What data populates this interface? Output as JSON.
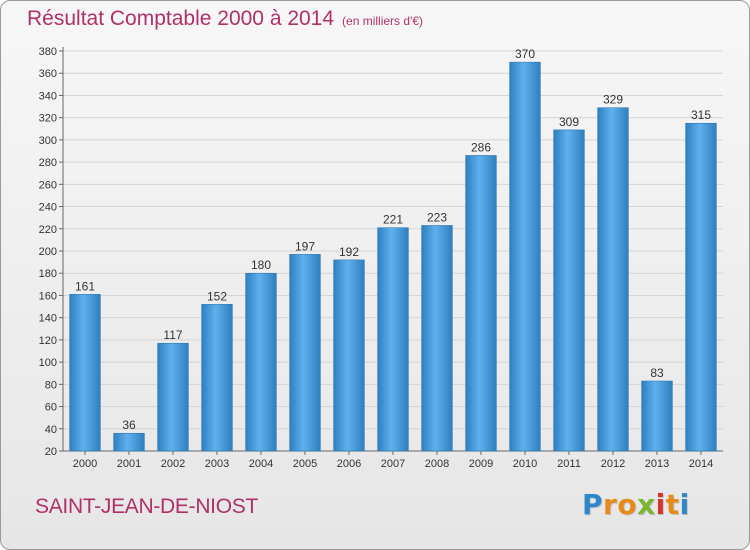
{
  "chart_data": {
    "type": "bar",
    "title": "Résultat Comptable 2000 à 2014",
    "subtitle": "(en milliers d'€)",
    "categories": [
      "2000",
      "2001",
      "2002",
      "2003",
      "2004",
      "2005",
      "2006",
      "2007",
      "2008",
      "2009",
      "2010",
      "2011",
      "2012",
      "2013",
      "2014"
    ],
    "values": [
      161,
      36,
      117,
      152,
      180,
      197,
      192,
      221,
      223,
      286,
      370,
      309,
      329,
      83,
      315
    ],
    "ylim": [
      20,
      380
    ],
    "yticks": [
      20,
      40,
      60,
      80,
      100,
      120,
      140,
      160,
      180,
      200,
      220,
      240,
      260,
      280,
      300,
      320,
      340,
      360,
      380
    ],
    "grid": true,
    "bar_color": "#3f95d8"
  },
  "footer": {
    "commune": "SAINT-JEAN-DE-NIOST",
    "logo_letters": [
      "P",
      "r",
      "o",
      "x",
      "i",
      "t",
      "i"
    ],
    "logo_colors": [
      "#2f86c8",
      "#e88a1a",
      "#e88a1a",
      "#7bb530",
      "#d8322f",
      "#e88a1a",
      "#2f86c8"
    ]
  }
}
